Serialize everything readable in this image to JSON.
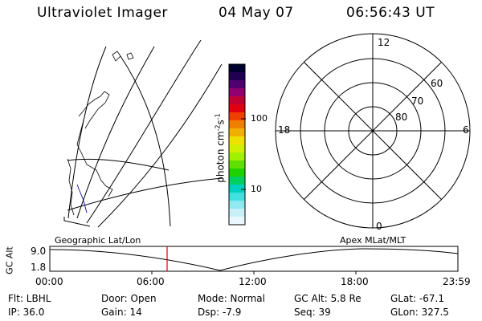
{
  "header": {
    "title": "Ultraviolet Imager",
    "date": "04 May 07",
    "time": "06:56:43 UT"
  },
  "left_panel": {
    "caption": "Geographic Lat/Lon"
  },
  "colorbar": {
    "label": "photon cm",
    "label_sup1": "-2",
    "label_mid": "s",
    "label_sup2": "-1",
    "tick_high": "100",
    "tick_low": "10",
    "colors": [
      "#000030",
      "#200050",
      "#500070",
      "#900070",
      "#c00030",
      "#e00010",
      "#f04000",
      "#f08000",
      "#f0b000",
      "#f0e000",
      "#d0f000",
      "#a0f000",
      "#60e000",
      "#20d000",
      "#00d060",
      "#00d0c0",
      "#40e0e0",
      "#90e8f0",
      "#c8f0f8",
      "#e8f8fc"
    ]
  },
  "polar": {
    "caption": "Apex MLat/MLT",
    "mlt_labels": {
      "top": "12",
      "left": "18",
      "right": "6",
      "bottom": "0"
    },
    "lat_labels": [
      "60",
      "70",
      "80"
    ]
  },
  "timeline": {
    "axis_label": "GC Alt",
    "y_max": "9.0",
    "y_min": "1.8",
    "ticks": [
      "00:00",
      "06:00",
      "12:00",
      "18:00",
      "23:59"
    ],
    "marker_time": "06:56",
    "marker_color": "#e00000"
  },
  "info": {
    "flt": "Flt: LBHL",
    "ip": "IP: 36.0",
    "door": "Door: Open",
    "gain": "Gain: 14",
    "mode": "Mode: Normal",
    "dsp": "Dsp:    -7.9",
    "gcalt": "GC Alt: 5.8 Re",
    "seq": "Seq: 39",
    "glat": "GLat: -67.1",
    "glon": "GLon: 327.5"
  }
}
